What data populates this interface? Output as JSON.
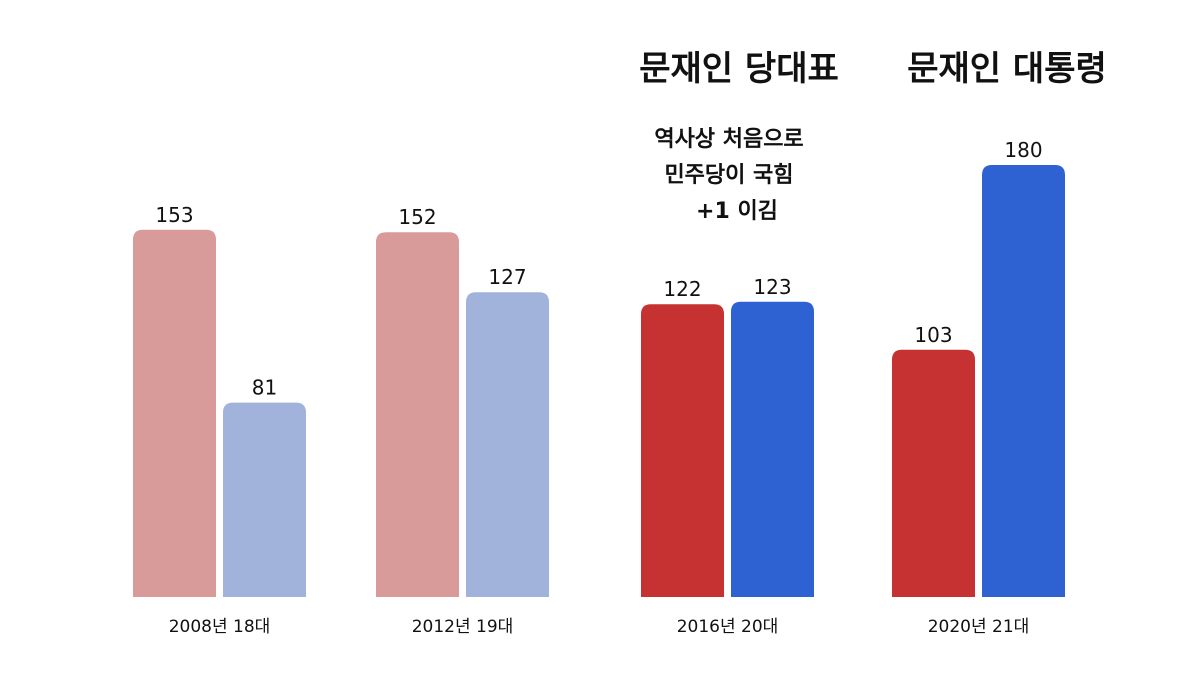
{
  "chart_data": {
    "type": "bar",
    "categories": [
      "2008년 18대",
      "2012년 19대",
      "2016년 20대",
      "2020년 21대"
    ],
    "series": [
      {
        "values": [
          153,
          152,
          122,
          103
        ]
      },
      {
        "values": [
          81,
          127,
          123,
          180
        ]
      }
    ],
    "colors": {
      "faded": [
        "#d99a9a",
        "#a1b2db"
      ],
      "highlight": [
        "#c63131",
        "#2e62d3"
      ]
    },
    "highlighted_categories": [
      2,
      3
    ],
    "ylim": [
      0,
      200
    ],
    "grid": false,
    "annotations": {
      "header_2016": "문재인 당대표",
      "header_2020": "문재인 대통령",
      "note_lines": [
        "역사상 처음으로",
        "민주당이 국힘",
        "+1 이김"
      ]
    }
  }
}
